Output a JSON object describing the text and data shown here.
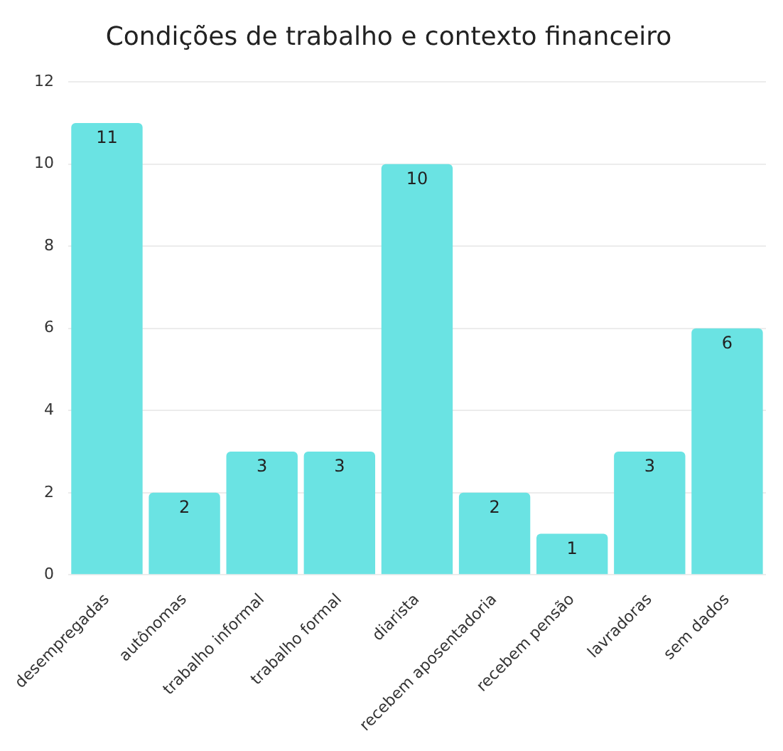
{
  "chart_data": {
    "type": "bar",
    "title": "Condições de trabalho e contexto financeiro",
    "categories": [
      "desempregadas",
      "autônomas",
      "trabalho informal",
      "trabalho formal",
      "diarista",
      "recebem aposentadoria",
      "recebem pensão",
      "lavradoras",
      "sem dados"
    ],
    "values": [
      11,
      2,
      3,
      3,
      10,
      2,
      1,
      3,
      6
    ],
    "color": "#6ae3e3",
    "ylim": [
      0,
      12
    ],
    "yticks": [
      0,
      2,
      4,
      6,
      8,
      10,
      12
    ],
    "grid": "y",
    "data_labels": true,
    "legend": false
  }
}
